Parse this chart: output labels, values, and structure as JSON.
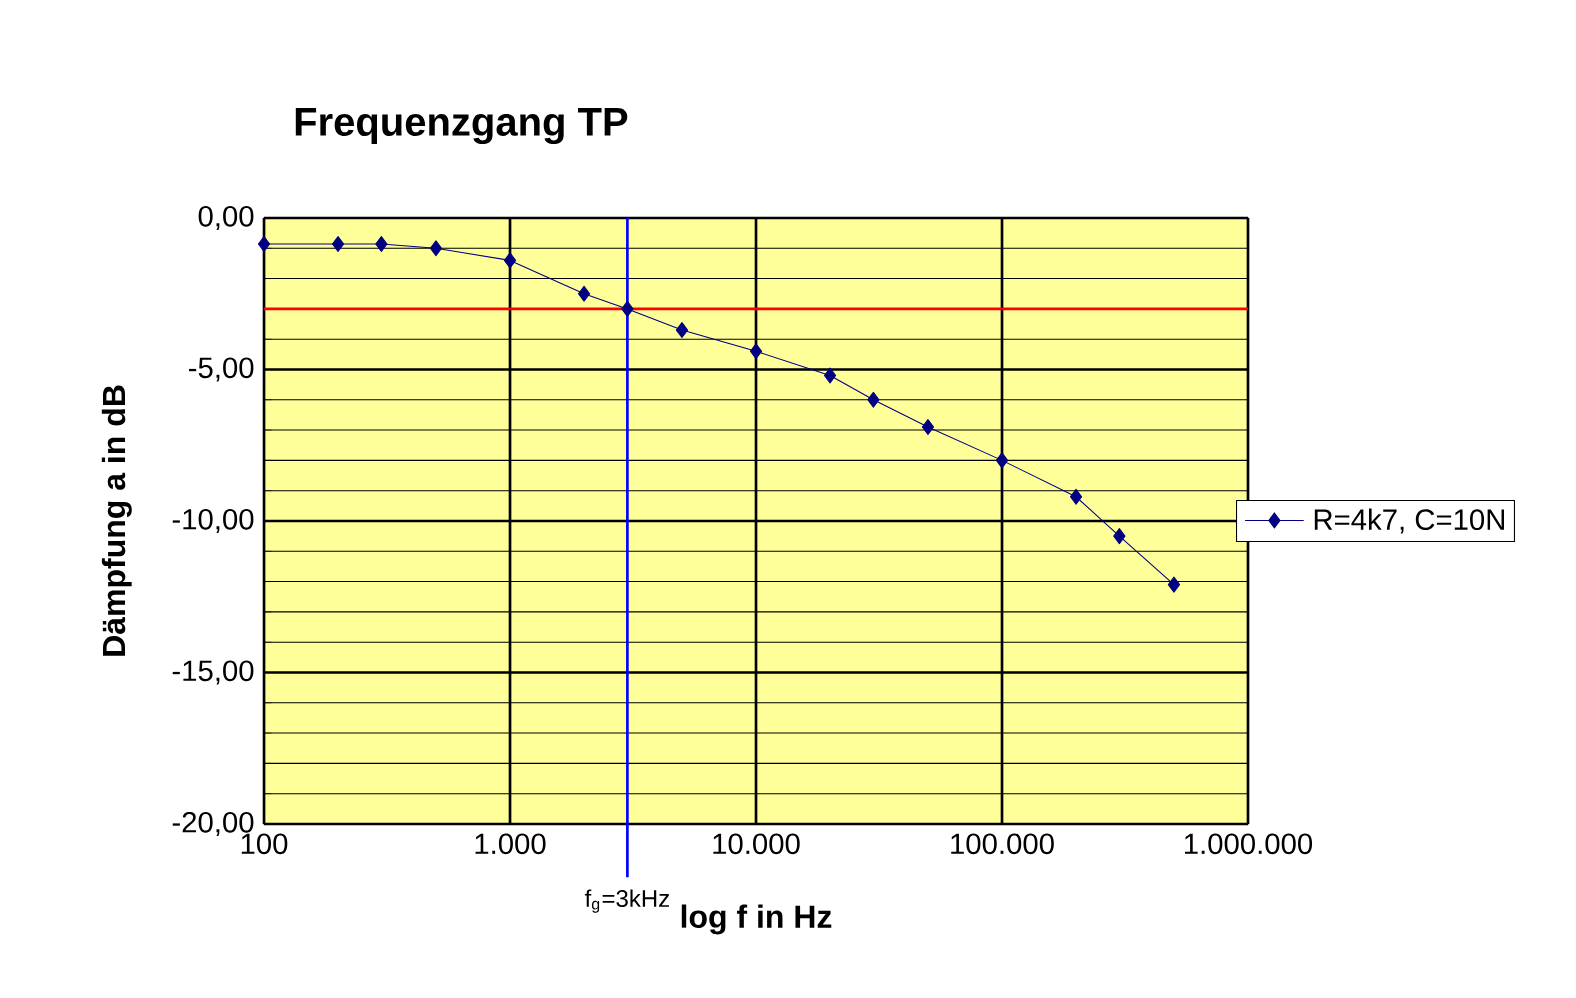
{
  "chart_data": {
    "type": "line",
    "title": "Frequenzgang TP",
    "xlabel": "log f in Hz",
    "ylabel": "Dämpfung a in dB",
    "x": [
      100,
      200,
      300,
      500,
      1000,
      2000,
      3000,
      5000,
      10000,
      20000,
      30000,
      50000,
      100000,
      200000,
      300000,
      500000
    ],
    "series": [
      {
        "name": "R=4k7, C=10N",
        "color": "#000080",
        "values": [
          -0.86,
          -0.86,
          -0.86,
          -1.0,
          -1.4,
          -2.5,
          -3.0,
          -3.7,
          -4.4,
          -5.2,
          -6.0,
          -6.9,
          -8.0,
          -9.2,
          -10.5,
          -12.1
        ]
      }
    ],
    "log": "x",
    "xlim": [
      100,
      1000000
    ],
    "xticks": [
      100,
      {
        "value": 1000,
        "label": "1.000"
      },
      {
        "value": 10000,
        "label": "10.000"
      },
      {
        "value": 100000,
        "label": "100.000"
      },
      {
        "value": 1000000,
        "label": "1.000.000"
      }
    ],
    "ylim": [
      -20,
      0
    ],
    "yticks": [
      {
        "value": 0,
        "label": "0,00"
      },
      {
        "value": -5,
        "label": "-5,00"
      },
      {
        "value": -10,
        "label": "-10,00"
      },
      {
        "value": -15,
        "label": "-15,00"
      },
      {
        "value": -20,
        "label": "-20,00"
      }
    ],
    "ref_lines": [
      {
        "axis": "y",
        "value": -3,
        "label": null,
        "color": "#ff0000"
      },
      {
        "axis": "x",
        "value": 3000,
        "label": null,
        "color": "#0000ff"
      }
    ],
    "annotations": [
      "f$_{g}$=3kHz"
    ],
    "grid": true,
    "legend": "right",
    "marker": "diamond",
    "line_style": "solid"
  }
}
